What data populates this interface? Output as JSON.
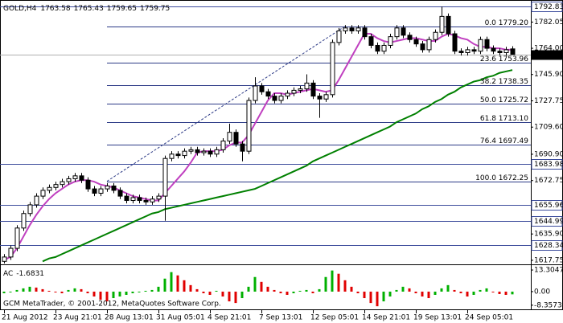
{
  "chart_data": {
    "type": "candlestick",
    "symbol": "GOLD,H4",
    "x": [
      "21 Aug 2012",
      null,
      null,
      null,
      null,
      null,
      null,
      null,
      "23 Aug 21:01",
      null,
      null,
      null,
      null,
      null,
      null,
      null,
      "28 Aug 13:01",
      null,
      null,
      null,
      null,
      null,
      null,
      null,
      "31 Aug 05:01",
      null,
      null,
      null,
      null,
      null,
      null,
      null,
      "4 Sep 21:01",
      null,
      null,
      null,
      null,
      null,
      null,
      null,
      "7 Sep 13:01",
      null,
      null,
      null,
      null,
      null,
      null,
      null,
      "12 Sep 05:01",
      null,
      null,
      null,
      null,
      null,
      null,
      null,
      "14 Sep 21:01",
      null,
      null,
      null,
      null,
      null,
      null,
      null,
      "19 Sep 13:01",
      null,
      null,
      null,
      null,
      null,
      null,
      null,
      "24 Sep 05:01",
      null,
      null,
      null,
      null,
      null,
      null,
      null
    ],
    "open": [
      1617,
      1620,
      1626,
      1640,
      1650,
      1656,
      1662,
      1666,
      1668,
      1670,
      1672,
      1674,
      1676,
      1673,
      1667,
      1664,
      1667,
      1669,
      1666,
      1662,
      1659,
      1661,
      1659,
      1658,
      1660,
      1662,
      1688,
      1691,
      1690,
      1693,
      1694,
      1692,
      1693,
      1691,
      1694,
      1700,
      1706,
      1698,
      1693,
      1728,
      1738,
      1734,
      1731,
      1728,
      1731,
      1733,
      1735,
      1736,
      1740,
      1731,
      1729,
      1732,
      1768,
      1776,
      1778,
      1776,
      1778,
      1772,
      1766,
      1762,
      1766,
      1772,
      1778,
      1773,
      1770,
      1767,
      1763,
      1770,
      1775,
      1786,
      1774,
      1762,
      1761,
      1763,
      1762,
      1770,
      1764,
      1762,
      1761,
      1763.58
    ],
    "high": [
      1622,
      1628,
      1642,
      1652,
      1658,
      1664,
      1668,
      1670,
      1672,
      1674,
      1676,
      1678,
      1678,
      1675,
      1669,
      1669,
      1671,
      1671,
      1668,
      1664,
      1663,
      1663,
      1661,
      1662,
      1664,
      1690,
      1693,
      1693,
      1695,
      1696,
      1696,
      1695,
      1695,
      1696,
      1702,
      1712,
      1708,
      1700,
      1730,
      1744,
      1740,
      1736,
      1733,
      1733,
      1735,
      1737,
      1738,
      1746,
      1742,
      1733,
      1734,
      1770,
      1778,
      1780,
      1780,
      1780,
      1780,
      1774,
      1768,
      1768,
      1774,
      1780,
      1780,
      1775,
      1772,
      1769,
      1772,
      1777,
      1792.83,
      1788,
      1776,
      1764,
      1765,
      1765,
      1772,
      1772,
      1766,
      1764,
      1765,
      1765.43
    ],
    "low": [
      1615.6,
      1618,
      1624,
      1638,
      1648,
      1654,
      1660,
      1664,
      1666,
      1668,
      1670,
      1672,
      1671,
      1665,
      1662,
      1662,
      1665,
      1664,
      1660,
      1657,
      1657,
      1657,
      1656,
      1656,
      1658,
      1645,
      1686,
      1688,
      1688,
      1691,
      1690,
      1690,
      1689,
      1689,
      1692,
      1698,
      1696,
      1686,
      1691,
      1726,
      1732,
      1729,
      1726,
      1726,
      1729,
      1731,
      1733,
      1734,
      1729,
      1716,
      1727,
      1730,
      1766,
      1774,
      1774,
      1774,
      1770,
      1764,
      1760,
      1760,
      1764,
      1770,
      1771,
      1768,
      1765,
      1761,
      1761,
      1768,
      1773,
      1772,
      1760,
      1759,
      1759,
      1760,
      1760,
      1762,
      1760,
      1759,
      1759,
      1759.65
    ],
    "close": [
      1620,
      1626,
      1640,
      1650,
      1656,
      1662,
      1666,
      1668,
      1670,
      1672,
      1674,
      1676,
      1673,
      1667,
      1664,
      1667,
      1669,
      1666,
      1662,
      1659,
      1661,
      1659,
      1658,
      1660,
      1662,
      1688,
      1691,
      1690,
      1693,
      1694,
      1692,
      1693,
      1691,
      1694,
      1700,
      1706,
      1698,
      1693,
      1728,
      1738,
      1734,
      1731,
      1728,
      1731,
      1733,
      1735,
      1736,
      1740,
      1731,
      1729,
      1732,
      1768,
      1776,
      1778,
      1776,
      1778,
      1772,
      1766,
      1762,
      1766,
      1772,
      1778,
      1773,
      1770,
      1767,
      1763,
      1770,
      1775,
      1786,
      1774,
      1762,
      1761,
      1763,
      1762,
      1770,
      1764,
      1762,
      1761,
      1763,
      1759.75
    ],
    "ylim": [
      1615.5,
      1797.3
    ],
    "yticks": [
      1782.05,
      {
        "value": 1764,
        "label": "1764.00"
      },
      {
        "value": 1745.9,
        "label": "1745.90"
      },
      1727.75,
      {
        "value": 1709.6,
        "label": "1709.60"
      },
      {
        "value": 1690.9,
        "label": "1690.90"
      },
      1672.75,
      {
        "value": 1635.9,
        "label": "1635.90"
      },
      1617.75
    ],
    "levels": [
      1792.83,
      1683.98,
      1655.96,
      1644.99,
      1628.34
    ],
    "level_color": "#3c4c9c",
    "moving_averages": [
      {
        "color": "#c040c0",
        "values": [
          1618,
          1620,
          1626,
          1634,
          1642,
          1649,
          1655,
          1660,
          1664,
          1667,
          1670,
          1672,
          1673,
          1673,
          1672,
          1670,
          1669,
          1668,
          1666,
          1664,
          1662,
          1661,
          1660,
          1659,
          1659,
          1664,
          1669,
          1674,
          1679,
          1685,
          1692,
          1693,
          1693,
          1693,
          1694,
          1697,
          1699,
          1699,
          1704,
          1712,
          1720,
          1728,
          1733,
          1733,
          1732,
          1733,
          1734,
          1735,
          1736,
          1735,
          1734,
          1735,
          1742,
          1750,
          1758,
          1766,
          1774,
          1774,
          1771,
          1769,
          1768,
          1769,
          1770,
          1771,
          1771,
          1770,
          1769,
          1769,
          1772,
          1774,
          1773,
          1771,
          1770,
          1767,
          1765,
          1765,
          1764,
          1764,
          1763,
          1763
        ]
      },
      {
        "color": "#008000",
        "values": [
          null,
          null,
          null,
          null,
          null,
          null,
          1617,
          1619,
          1620,
          1622,
          1624,
          1626,
          1628,
          1630,
          1632,
          1634,
          1636,
          1638,
          1640,
          1642,
          1644,
          1646,
          1648,
          1650,
          1651,
          1653,
          1654,
          1655,
          1656,
          1657,
          1658,
          1659,
          1660,
          1661,
          1662,
          1663,
          1664,
          1665,
          1666,
          1667,
          1669,
          1671,
          1673,
          1675,
          1677,
          1679,
          1681,
          1683,
          1686,
          1688,
          1690,
          1692,
          1694,
          1696,
          1698,
          1700,
          1702,
          1704,
          1706,
          1708,
          1710,
          1713,
          1715,
          1717,
          1719,
          1722,
          1724,
          1727,
          1729,
          1732,
          1734,
          1737,
          1739,
          1741,
          1742,
          1744,
          1745,
          1747,
          1748,
          1749
        ]
      }
    ],
    "fibonacci": {
      "color": "#2c3a86",
      "levels": [
        {
          "value": 1779.2,
          "label": "0.0 1779.20"
        },
        {
          "value": 1753.96,
          "label": "23.6 1753.96"
        },
        {
          "value": 1738.35,
          "label": "38.2 1738.35"
        },
        {
          "value": 1725.72,
          "label": "50.0 1725.72"
        },
        {
          "value": 1713.1,
          "label": "61.8 1713.10"
        },
        {
          "value": 1697.49,
          "label": "76.4 1697.49"
        },
        {
          "value": 1672.25,
          "label": "100.0 1672.25"
        }
      ]
    },
    "indicator": {
      "type": "bar",
      "name": "AC",
      "up_color": "#00b000",
      "down_color": "#e00000",
      "values": [
        -1,
        -0.5,
        1,
        2,
        3,
        2.5,
        1.5,
        0.5,
        -0.5,
        -1,
        1,
        2,
        1.5,
        -1,
        -3,
        -5,
        -6,
        -4,
        -3,
        -2,
        -1,
        -0.5,
        0.5,
        1,
        3,
        8,
        12,
        10,
        7,
        4,
        1.5,
        -1,
        -2,
        0.5,
        -3,
        -6,
        -7,
        -4,
        3,
        9,
        6,
        3,
        1,
        -1,
        -2,
        -1,
        0.5,
        1,
        -1,
        1.5,
        9,
        13,
        11,
        7,
        3,
        -1,
        -4,
        -7,
        -9,
        -6,
        -3,
        1,
        3,
        2,
        -1,
        -3,
        -4,
        -2,
        2,
        4,
        1,
        -1,
        -3,
        -2,
        1,
        2,
        -0.5,
        -1.5,
        -2,
        -1.6831
      ],
      "ylim": [
        -11.4,
        15.8
      ],
      "yticks": [
        13.3047,
        {
          "value": 0,
          "label": "0.00"
        },
        -8.3573
      ]
    },
    "copyright": "GCM MetaTrader, © 2001-2012, MetaQuotes Software Corp."
  }
}
